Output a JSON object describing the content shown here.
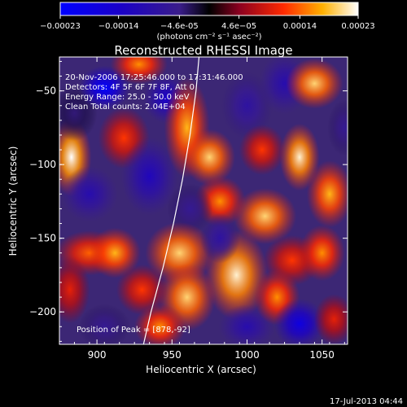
{
  "chart_data": {
    "type": "heatmap",
    "title": "Reconstructed RHESSI Image",
    "xlabel": "Heliocentric X (arcsec)",
    "ylabel": "Heliocentric Y (arcsec)",
    "xlim": [
      875,
      1067
    ],
    "ylim": [
      -222,
      -27
    ],
    "x_ticks": [
      900,
      950,
      1000,
      1050
    ],
    "y_ticks": [
      -50,
      -100,
      -150,
      -200
    ],
    "colorbar": {
      "range": [
        -0.00023,
        0.00023
      ],
      "tick_values": [
        -0.00023,
        -0.00014,
        -4.6e-05,
        4.6e-05,
        0.00014,
        0.00023
      ],
      "tick_labels": [
        "-0.00023",
        "-0.00014",
        "-4.6e-05",
        "4.6e-05",
        "0.00014",
        "0.00023"
      ],
      "unit_label": "(photons cm⁻² s⁻¹ asec⁻²)"
    },
    "annotations": {
      "time": "20-Nov-2006 17:25:46.000 to 17:31:46.000",
      "detectors": "Detectors: 4F 5F 6F 7F 8F, Att 0",
      "energy": "Energy Range: 25.0 - 50.0 keV",
      "clean": "Clean     Total counts: 2.04E+04",
      "peak": "Position of Peak = [878,-92]"
    },
    "limb_curve_points": [
      [
        968,
        -27
      ],
      [
        966,
        -50
      ],
      [
        962,
        -80
      ],
      [
        957,
        -110
      ],
      [
        951,
        -140
      ],
      [
        944,
        -170
      ],
      [
        936,
        -200
      ],
      [
        931,
        -222
      ]
    ],
    "blobs": [
      {
        "x": 883,
        "y": -95,
        "value": 0.00023,
        "sx": 7,
        "sy": 14
      },
      {
        "x": 885,
        "y": -65,
        "value": -4e-05,
        "sx": 8,
        "sy": 10
      },
      {
        "x": 905,
        "y": -48,
        "value": -0.00023,
        "sx": 9,
        "sy": 8
      },
      {
        "x": 928,
        "y": -32,
        "value": 0.00016,
        "sx": 10,
        "sy": 7
      },
      {
        "x": 918,
        "y": -82,
        "value": 0.00012,
        "sx": 9,
        "sy": 11
      },
      {
        "x": 895,
        "y": -120,
        "value": -0.0001,
        "sx": 10,
        "sy": 10
      },
      {
        "x": 895,
        "y": -160,
        "value": 0.00014,
        "sx": 12,
        "sy": 8
      },
      {
        "x": 912,
        "y": -160,
        "value": 0.00018,
        "sx": 9,
        "sy": 9
      },
      {
        "x": 882,
        "y": -185,
        "value": 0.0001,
        "sx": 7,
        "sy": 12
      },
      {
        "x": 935,
        "y": -108,
        "value": -0.00012,
        "sx": 10,
        "sy": 14
      },
      {
        "x": 946,
        "y": -55,
        "value": -0.00014,
        "sx": 8,
        "sy": 9
      },
      {
        "x": 960,
        "y": -75,
        "value": 0.00018,
        "sx": 8,
        "sy": 18
      },
      {
        "x": 975,
        "y": -95,
        "value": 0.0002,
        "sx": 9,
        "sy": 10
      },
      {
        "x": 982,
        "y": -125,
        "value": 0.00016,
        "sx": 9,
        "sy": 9
      },
      {
        "x": 962,
        "y": -130,
        "value": -6e-05,
        "sx": 8,
        "sy": 9
      },
      {
        "x": 955,
        "y": -160,
        "value": 0.0002,
        "sx": 12,
        "sy": 11
      },
      {
        "x": 960,
        "y": -190,
        "value": 0.0002,
        "sx": 10,
        "sy": 12
      },
      {
        "x": 930,
        "y": -185,
        "value": 0.00012,
        "sx": 9,
        "sy": 9
      },
      {
        "x": 993,
        "y": -175,
        "value": 0.00022,
        "sx": 11,
        "sy": 16
      },
      {
        "x": 982,
        "y": -150,
        "value": -8e-05,
        "sx": 7,
        "sy": 9
      },
      {
        "x": 1000,
        "y": -60,
        "value": -8e-05,
        "sx": 9,
        "sy": 12
      },
      {
        "x": 1010,
        "y": -90,
        "value": 0.00012,
        "sx": 8,
        "sy": 9
      },
      {
        "x": 1012,
        "y": -135,
        "value": 0.0002,
        "sx": 11,
        "sy": 10
      },
      {
        "x": 1000,
        "y": -210,
        "value": -0.0001,
        "sx": 10,
        "sy": 8
      },
      {
        "x": 1025,
        "y": -45,
        "value": -0.0001,
        "sx": 9,
        "sy": 11
      },
      {
        "x": 1045,
        "y": -45,
        "value": 0.0002,
        "sx": 10,
        "sy": 9
      },
      {
        "x": 1035,
        "y": -95,
        "value": 0.00022,
        "sx": 7,
        "sy": 12
      },
      {
        "x": 1055,
        "y": -120,
        "value": 0.00018,
        "sx": 8,
        "sy": 12
      },
      {
        "x": 1030,
        "y": -165,
        "value": 0.00012,
        "sx": 10,
        "sy": 9
      },
      {
        "x": 1050,
        "y": -160,
        "value": 0.00016,
        "sx": 8,
        "sy": 10
      },
      {
        "x": 1020,
        "y": -190,
        "value": 0.00016,
        "sx": 8,
        "sy": 10
      },
      {
        "x": 1035,
        "y": -208,
        "value": -0.00018,
        "sx": 9,
        "sy": 9
      },
      {
        "x": 1058,
        "y": -205,
        "value": 0.0001,
        "sx": 7,
        "sy": 9
      },
      {
        "x": 942,
        "y": -210,
        "value": 0.00016,
        "sx": 9,
        "sy": 8
      },
      {
        "x": 905,
        "y": -210,
        "value": -6e-05,
        "sx": 9,
        "sy": 8
      },
      {
        "x": 1065,
        "y": -75,
        "value": -6e-05,
        "sx": 6,
        "sy": 10
      }
    ]
  },
  "footer": {
    "date": "17-Jul-2013 04:44"
  }
}
